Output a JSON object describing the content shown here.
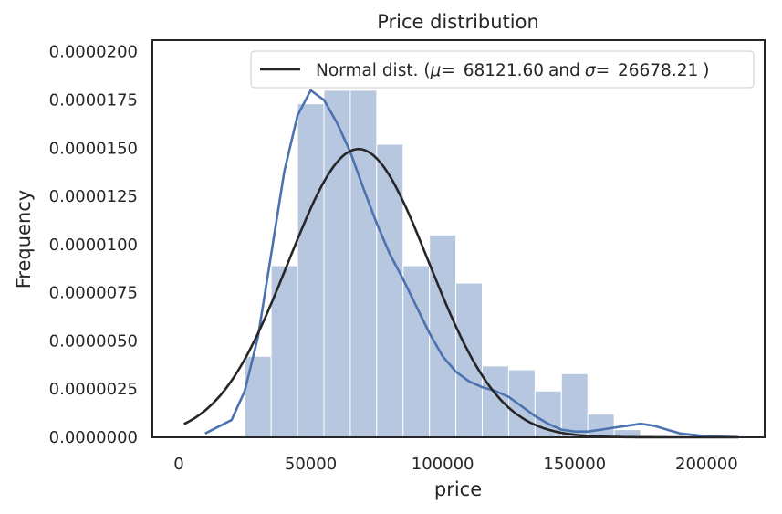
{
  "chart_data": {
    "type": "bar",
    "title": "Price distribution",
    "xlabel": "price",
    "ylabel": "Frequency",
    "xlim": [
      -10000,
      222000
    ],
    "ylim": [
      0,
      2.06e-05
    ],
    "x_ticks": [
      0,
      50000,
      100000,
      150000,
      200000
    ],
    "x_tick_labels": [
      "0",
      "50000",
      "100000",
      "150000",
      "200000"
    ],
    "y_ticks": [
      0,
      2.5e-06,
      5e-06,
      7.5e-06,
      1e-05,
      1.25e-05,
      1.5e-05,
      1.75e-05,
      2e-05
    ],
    "y_tick_labels": [
      "0.0000000",
      "0.0000025",
      "0.0000050",
      "0.0000075",
      "0.0000100",
      "0.0000125",
      "0.0000150",
      "0.0000175",
      "0.0000200"
    ],
    "grid": false,
    "legend_position": "top-right",
    "colors": {
      "hist": "#4c72b0",
      "kde": "#4c72b0",
      "normal": "#262626"
    },
    "histogram": {
      "bin_edges": [
        25000,
        35000,
        45000,
        55000,
        65000,
        75000,
        85000,
        95000,
        105000,
        115000,
        125000,
        135000,
        145000,
        155000,
        165000,
        175000,
        185000
      ],
      "values": [
        4.2e-06,
        8.9e-06,
        1.73e-05,
        1.8e-05,
        1.8e-05,
        1.52e-05,
        8.9e-06,
        1.05e-05,
        8e-06,
        3.7e-06,
        3.5e-06,
        2.4e-06,
        3.3e-06,
        1.2e-06,
        4e-07,
        1e-07,
        7e-07
      ]
    },
    "kde": {
      "x": [
        10000,
        20000,
        25000,
        30000,
        35000,
        40000,
        45000,
        50000,
        55000,
        60000,
        65000,
        70000,
        75000,
        80000,
        85000,
        90000,
        95000,
        100000,
        105000,
        110000,
        115000,
        120000,
        125000,
        130000,
        135000,
        140000,
        145000,
        150000,
        155000,
        160000,
        165000,
        170000,
        175000,
        180000,
        185000,
        190000,
        200000,
        212000
      ],
      "y": [
        2e-07,
        9e-07,
        2.4e-06,
        5.2e-06,
        9.5e-06,
        1.38e-05,
        1.67e-05,
        1.8e-05,
        1.75e-05,
        1.63e-05,
        1.48e-05,
        1.29e-05,
        1.11e-05,
        9.5e-06,
        8.2e-06,
        6.8e-06,
        5.4e-06,
        4.2e-06,
        3.4e-06,
        2.9e-06,
        2.6e-06,
        2.4e-06,
        2.1e-06,
        1.6e-06,
        1.1e-06,
        7e-07,
        4e-07,
        3e-07,
        3e-07,
        4e-07,
        5e-07,
        6e-07,
        7e-07,
        6e-07,
        4e-07,
        2e-07,
        5e-08,
        1e-08
      ]
    },
    "normal_fit": {
      "mu": 68121.6,
      "sigma": 26678.21,
      "x_range": [
        2000,
        212000
      ]
    },
    "legend": {
      "prefix": "Normal dist. (",
      "mu_label": "μ",
      "mu_value": "68121.60",
      "joiner": "and",
      "sigma_label": "σ",
      "sigma_value": "26678.21",
      "suffix": ")"
    }
  }
}
